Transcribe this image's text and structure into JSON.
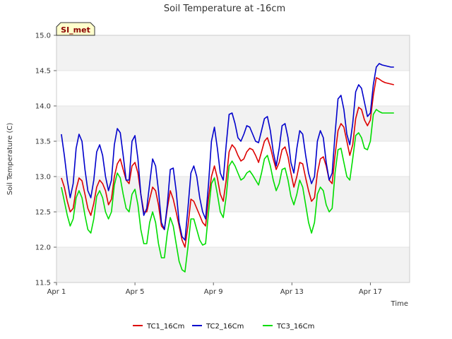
{
  "chart_data": {
    "type": "line",
    "title": "Soil Temperature at -16cm",
    "xlabel": "Time",
    "ylabel": "Soil Temperature (C)",
    "ylim": [
      11.5,
      15.0
    ],
    "xlim": [
      0,
      18.0
    ],
    "y_ticks": [
      11.5,
      12.0,
      12.5,
      13.0,
      13.5,
      14.0,
      14.5,
      15.0
    ],
    "x_ticks": [
      {
        "value": 0,
        "label": "Apr 1"
      },
      {
        "value": 4,
        "label": "Apr 5"
      },
      {
        "value": 8,
        "label": "Apr 9"
      },
      {
        "value": 12,
        "label": "Apr 13"
      },
      {
        "value": 16,
        "label": "Apr 17"
      }
    ],
    "badge": "SI_met",
    "grid": true,
    "legend_position": "bottom-center",
    "series": [
      {
        "name": "TC1_16Cm",
        "color": "#dd0000",
        "x": [
          0.25,
          0.4,
          0.55,
          0.7,
          0.85,
          1.0,
          1.15,
          1.3,
          1.45,
          1.6,
          1.75,
          1.9,
          2.05,
          2.2,
          2.35,
          2.5,
          2.65,
          2.8,
          2.95,
          3.1,
          3.25,
          3.4,
          3.55,
          3.7,
          3.85,
          4.0,
          4.15,
          4.3,
          4.45,
          4.6,
          4.75,
          4.9,
          5.05,
          5.2,
          5.35,
          5.5,
          5.65,
          5.8,
          5.95,
          6.1,
          6.25,
          6.4,
          6.55,
          6.7,
          6.85,
          7.0,
          7.15,
          7.3,
          7.45,
          7.6,
          7.75,
          7.9,
          8.05,
          8.2,
          8.35,
          8.5,
          8.65,
          8.8,
          8.95,
          9.1,
          9.25,
          9.4,
          9.55,
          9.7,
          9.85,
          10.0,
          10.15,
          10.3,
          10.45,
          10.6,
          10.75,
          10.9,
          11.05,
          11.2,
          11.35,
          11.5,
          11.65,
          11.8,
          11.95,
          12.1,
          12.25,
          12.4,
          12.55,
          12.7,
          12.85,
          13.0,
          13.15,
          13.3,
          13.45,
          13.6,
          13.75,
          13.9,
          14.05,
          14.2,
          14.35,
          14.5,
          14.65,
          14.8,
          14.95,
          15.1,
          15.25,
          15.4,
          15.55,
          15.7,
          15.85,
          16.0,
          16.15,
          16.3,
          16.45,
          16.6,
          16.75,
          16.9,
          17.05,
          17.2
        ],
        "values": [
          12.98,
          12.85,
          12.65,
          12.5,
          12.55,
          12.82,
          12.98,
          12.94,
          12.75,
          12.55,
          12.45,
          12.62,
          12.85,
          12.95,
          12.9,
          12.8,
          12.6,
          12.68,
          13.0,
          13.18,
          13.25,
          13.1,
          12.95,
          12.9,
          13.15,
          13.2,
          13.05,
          12.75,
          12.5,
          12.5,
          12.68,
          12.85,
          12.8,
          12.6,
          12.3,
          12.25,
          12.55,
          12.8,
          12.68,
          12.5,
          12.3,
          12.1,
          12.0,
          12.3,
          12.68,
          12.65,
          12.55,
          12.45,
          12.35,
          12.3,
          12.7,
          13.0,
          13.15,
          12.98,
          12.75,
          12.65,
          12.95,
          13.35,
          13.45,
          13.4,
          13.3,
          13.22,
          13.25,
          13.35,
          13.4,
          13.38,
          13.3,
          13.2,
          13.35,
          13.5,
          13.55,
          13.42,
          13.25,
          13.1,
          13.2,
          13.38,
          13.42,
          13.28,
          13.05,
          12.85,
          13.0,
          13.2,
          13.18,
          12.98,
          12.8,
          12.65,
          12.7,
          13.05,
          13.25,
          13.28,
          13.15,
          12.95,
          12.9,
          13.3,
          13.65,
          13.75,
          13.7,
          13.5,
          13.3,
          13.45,
          13.82,
          13.98,
          13.95,
          13.8,
          13.72,
          13.8,
          14.15,
          14.4,
          14.38,
          14.35,
          14.33,
          14.32,
          14.31,
          14.3
        ]
      },
      {
        "name": "TC2_16Cm",
        "color": "#0000cc",
        "x": [
          0.25,
          0.4,
          0.55,
          0.7,
          0.85,
          1.0,
          1.15,
          1.3,
          1.45,
          1.6,
          1.75,
          1.9,
          2.05,
          2.2,
          2.35,
          2.5,
          2.65,
          2.8,
          2.95,
          3.1,
          3.25,
          3.4,
          3.55,
          3.7,
          3.85,
          4.0,
          4.15,
          4.3,
          4.45,
          4.6,
          4.75,
          4.9,
          5.05,
          5.2,
          5.35,
          5.5,
          5.65,
          5.8,
          5.95,
          6.1,
          6.25,
          6.4,
          6.55,
          6.7,
          6.85,
          7.0,
          7.15,
          7.3,
          7.45,
          7.6,
          7.75,
          7.9,
          8.05,
          8.2,
          8.35,
          8.5,
          8.65,
          8.8,
          8.95,
          9.1,
          9.25,
          9.4,
          9.55,
          9.7,
          9.85,
          10.0,
          10.15,
          10.3,
          10.45,
          10.6,
          10.75,
          10.9,
          11.05,
          11.2,
          11.35,
          11.5,
          11.65,
          11.8,
          11.95,
          12.1,
          12.25,
          12.4,
          12.55,
          12.7,
          12.85,
          13.0,
          13.15,
          13.3,
          13.45,
          13.6,
          13.75,
          13.9,
          14.05,
          14.2,
          14.35,
          14.5,
          14.65,
          14.8,
          14.95,
          15.1,
          15.25,
          15.4,
          15.55,
          15.7,
          15.85,
          16.0,
          16.15,
          16.3,
          16.45,
          16.6,
          16.75,
          16.9,
          17.05,
          17.2
        ],
        "values": [
          13.6,
          13.3,
          12.95,
          12.7,
          12.9,
          13.4,
          13.6,
          13.5,
          13.1,
          12.8,
          12.7,
          12.95,
          13.35,
          13.45,
          13.3,
          13.0,
          12.8,
          12.95,
          13.45,
          13.68,
          13.62,
          13.3,
          12.95,
          12.95,
          13.5,
          13.58,
          13.25,
          12.75,
          12.45,
          12.55,
          12.9,
          13.25,
          13.15,
          12.8,
          12.35,
          12.25,
          12.6,
          13.1,
          13.12,
          12.8,
          12.35,
          12.15,
          12.1,
          12.55,
          13.05,
          13.15,
          13.0,
          12.7,
          12.5,
          12.4,
          12.9,
          13.5,
          13.7,
          13.4,
          13.05,
          12.95,
          13.45,
          13.88,
          13.9,
          13.75,
          13.55,
          13.5,
          13.6,
          13.72,
          13.7,
          13.6,
          13.5,
          13.48,
          13.65,
          13.82,
          13.85,
          13.65,
          13.35,
          13.15,
          13.4,
          13.72,
          13.75,
          13.55,
          13.2,
          13.05,
          13.4,
          13.65,
          13.6,
          13.3,
          13.05,
          12.9,
          13.0,
          13.5,
          13.65,
          13.55,
          13.2,
          12.95,
          13.05,
          13.6,
          14.1,
          14.15,
          13.95,
          13.6,
          13.45,
          13.75,
          14.2,
          14.3,
          14.25,
          14.05,
          13.85,
          13.9,
          14.3,
          14.55,
          14.6,
          14.58,
          14.57,
          14.56,
          14.55,
          14.55
        ]
      },
      {
        "name": "TC3_16Cm",
        "color": "#00dd00",
        "x": [
          0.25,
          0.4,
          0.55,
          0.7,
          0.85,
          1.0,
          1.15,
          1.3,
          1.45,
          1.6,
          1.75,
          1.9,
          2.05,
          2.2,
          2.35,
          2.5,
          2.65,
          2.8,
          2.95,
          3.1,
          3.25,
          3.4,
          3.55,
          3.7,
          3.85,
          4.0,
          4.15,
          4.3,
          4.45,
          4.6,
          4.75,
          4.9,
          5.05,
          5.2,
          5.35,
          5.5,
          5.65,
          5.8,
          5.95,
          6.1,
          6.25,
          6.4,
          6.55,
          6.7,
          6.85,
          7.0,
          7.15,
          7.3,
          7.45,
          7.6,
          7.75,
          7.9,
          8.05,
          8.2,
          8.35,
          8.5,
          8.65,
          8.8,
          8.95,
          9.1,
          9.25,
          9.4,
          9.55,
          9.7,
          9.85,
          10.0,
          10.15,
          10.3,
          10.45,
          10.6,
          10.75,
          10.9,
          11.05,
          11.2,
          11.35,
          11.5,
          11.65,
          11.8,
          11.95,
          12.1,
          12.25,
          12.4,
          12.55,
          12.7,
          12.85,
          13.0,
          13.15,
          13.3,
          13.45,
          13.6,
          13.75,
          13.9,
          14.05,
          14.2,
          14.35,
          14.5,
          14.65,
          14.8,
          14.95,
          15.1,
          15.25,
          15.4,
          15.55,
          15.7,
          15.85,
          16.0,
          16.15,
          16.3,
          16.45,
          16.6,
          16.75,
          16.9,
          17.05,
          17.2
        ],
        "values": [
          12.85,
          12.65,
          12.45,
          12.3,
          12.4,
          12.7,
          12.8,
          12.7,
          12.45,
          12.25,
          12.2,
          12.4,
          12.72,
          12.8,
          12.7,
          12.5,
          12.4,
          12.5,
          12.88,
          13.05,
          12.98,
          12.75,
          12.55,
          12.5,
          12.75,
          12.82,
          12.6,
          12.25,
          12.05,
          12.05,
          12.35,
          12.5,
          12.35,
          12.05,
          11.85,
          11.85,
          12.2,
          12.42,
          12.3,
          12.05,
          11.8,
          11.68,
          11.65,
          12.0,
          12.4,
          12.4,
          12.25,
          12.1,
          12.03,
          12.05,
          12.5,
          12.9,
          12.98,
          12.75,
          12.5,
          12.42,
          12.72,
          13.15,
          13.22,
          13.15,
          13.05,
          12.95,
          12.98,
          13.05,
          13.08,
          13.02,
          12.95,
          12.88,
          13.05,
          13.25,
          13.3,
          13.15,
          12.95,
          12.8,
          12.9,
          13.1,
          13.12,
          12.95,
          12.72,
          12.6,
          12.75,
          12.95,
          12.85,
          12.6,
          12.35,
          12.2,
          12.35,
          12.75,
          12.85,
          12.8,
          12.6,
          12.5,
          12.55,
          13.05,
          13.38,
          13.4,
          13.2,
          13.0,
          12.95,
          13.25,
          13.58,
          13.62,
          13.55,
          13.4,
          13.38,
          13.5,
          13.88,
          13.95,
          13.92,
          13.9,
          13.9,
          13.9,
          13.9,
          13.9
        ]
      }
    ]
  }
}
